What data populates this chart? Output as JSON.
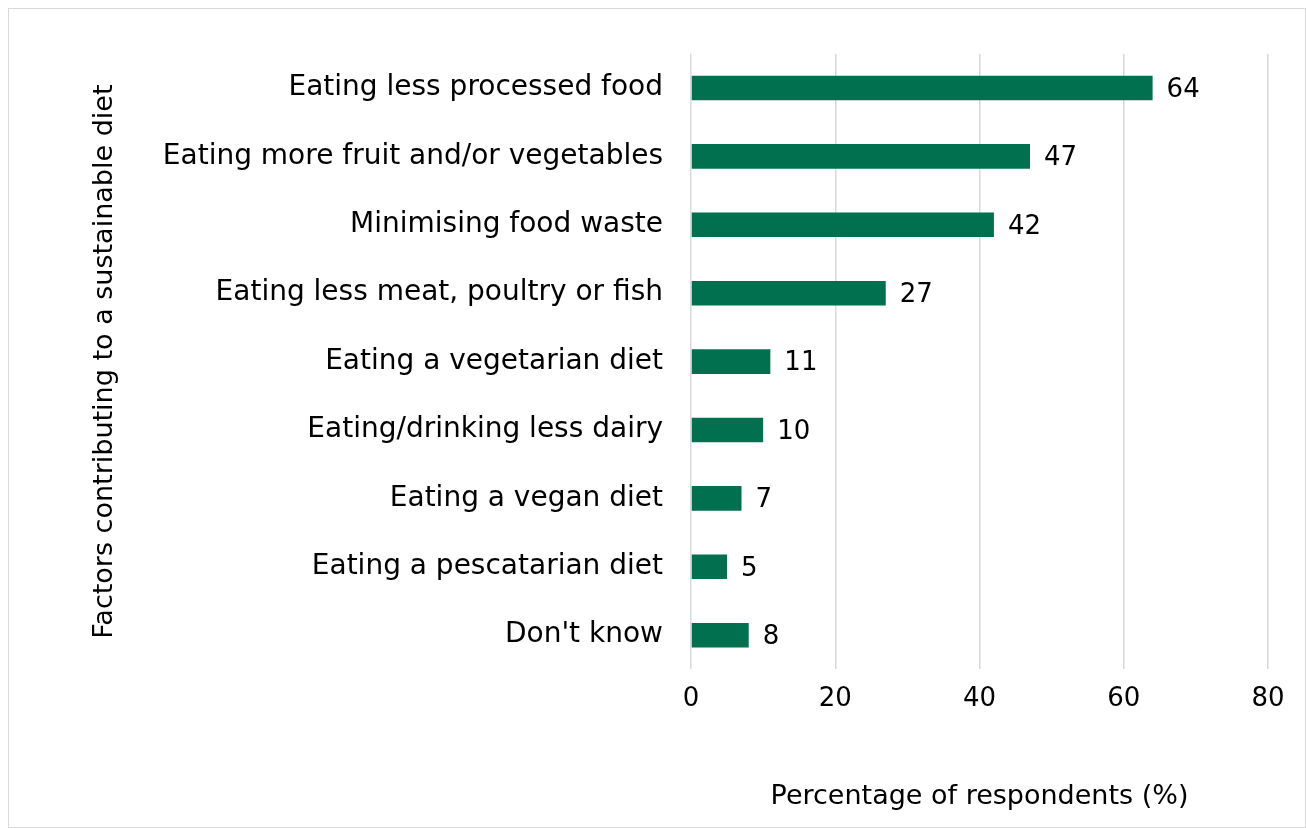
{
  "chart_data": {
    "type": "bar",
    "orientation": "horizontal",
    "ylabel": "Factors contributing to a sustainable diet",
    "xlabel": "Percentage of respondents (%)",
    "categories": [
      "Eating less processed food",
      "Eating more fruit and/or vegetables",
      "Minimising food waste",
      "Eating less meat, poultry or fish",
      "Eating a vegetarian diet",
      "Eating/drinking less dairy",
      "Eating a vegan diet",
      "Eating a pescatarian diet",
      "Don't know"
    ],
    "values": [
      64,
      47,
      42,
      27,
      11,
      10,
      7,
      5,
      8
    ],
    "color": "#00704f",
    "xlim": [
      0,
      80
    ],
    "xticks": [
      0,
      20,
      40,
      60,
      80
    ],
    "grid": "x",
    "data_labels": true,
    "legend": false
  }
}
